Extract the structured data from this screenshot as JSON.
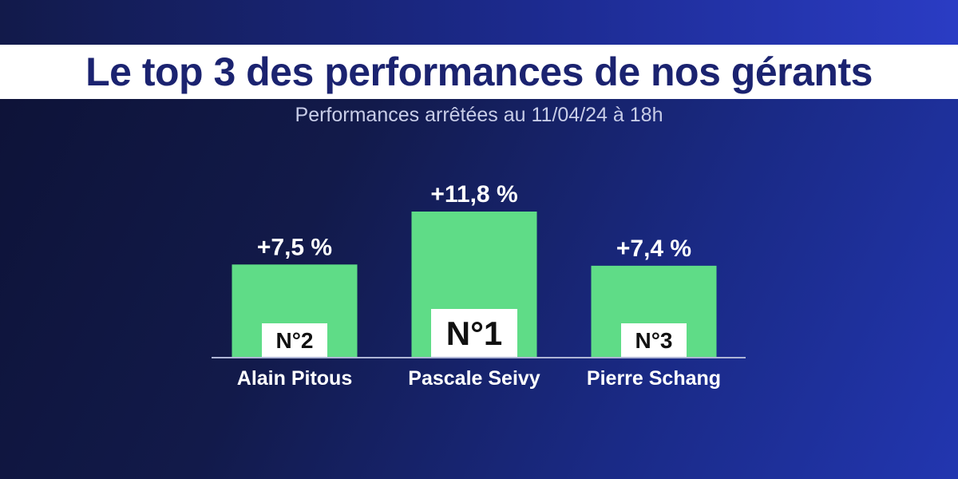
{
  "chart_data": {
    "type": "bar",
    "title": "Le top 3 des performances de nos gérants",
    "subtitle": "Performances arrêtées au 11/04/24 à 18h",
    "categories": [
      "Alain Pitous",
      "Pascale Seivy",
      "Pierre Schang"
    ],
    "values": [
      7.5,
      11.8,
      7.4
    ],
    "value_labels": [
      "+7,5 %",
      "+11,8 %",
      "+7,4 %"
    ],
    "ranks": [
      "N°2",
      "N°1",
      "N°3"
    ],
    "ylim": [
      0,
      11.8
    ],
    "grid": false,
    "bar_color": "#5fdc87"
  }
}
